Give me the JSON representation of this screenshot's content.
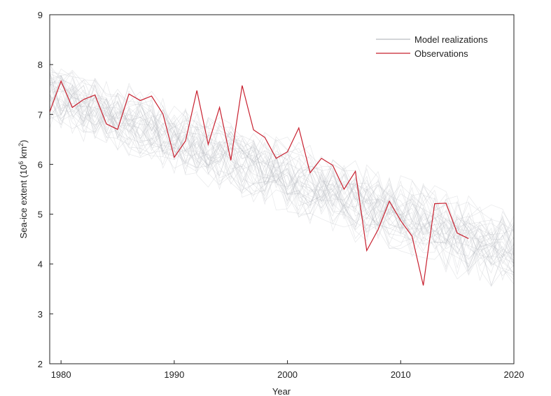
{
  "chart_data": {
    "type": "line",
    "title": "",
    "xlabel": "Year",
    "ylabel_main": "Sea-ice extent (10",
    "ylabel_sup1": "6",
    "ylabel_mid": " km",
    "ylabel_sup2": "2",
    "ylabel_end": ")",
    "xlim": [
      1979,
      2020
    ],
    "ylim": [
      2,
      9
    ],
    "xticks": [
      1980,
      1990,
      2000,
      2010,
      2020
    ],
    "yticks": [
      2,
      3,
      4,
      5,
      6,
      7,
      8,
      9
    ],
    "legend": {
      "position": "top-right",
      "entries": [
        {
          "label": "Model realizations",
          "color": "#b9bcc0"
        },
        {
          "label": "Observations",
          "color": "#c8202f"
        }
      ]
    },
    "colors": {
      "observations": "#c8202f",
      "model": "#b4b8bd",
      "axis": "#222222"
    },
    "model_realizations": {
      "count": 40,
      "note": "ensemble of simulated sea-ice extent trajectories, mean declining from about 7.4 in 1979 to about 4.2 in 2020",
      "mean_start": 7.4,
      "mean_end": 4.2,
      "spread": 0.75
    },
    "series": [
      {
        "name": "Observations",
        "x": [
          1979,
          1980,
          1981,
          1982,
          1983,
          1984,
          1985,
          1986,
          1987,
          1988,
          1989,
          1990,
          1991,
          1992,
          1993,
          1994,
          1995,
          1996,
          1997,
          1998,
          1999,
          2000,
          2001,
          2002,
          2003,
          2004,
          2005,
          2006,
          2007,
          2008,
          2009,
          2010,
          2011,
          2012,
          2013,
          2014,
          2015,
          2016
        ],
        "y": [
          7.05,
          7.67,
          7.14,
          7.3,
          7.39,
          6.81,
          6.7,
          7.41,
          7.28,
          7.37,
          7.01,
          6.14,
          6.47,
          7.48,
          6.4,
          7.14,
          6.08,
          7.58,
          6.69,
          6.54,
          6.12,
          6.25,
          6.73,
          5.83,
          6.12,
          5.98,
          5.5,
          5.86,
          4.27,
          4.69,
          5.26,
          4.87,
          4.56,
          3.57,
          5.21,
          5.22,
          4.62,
          4.51
        ]
      }
    ]
  }
}
